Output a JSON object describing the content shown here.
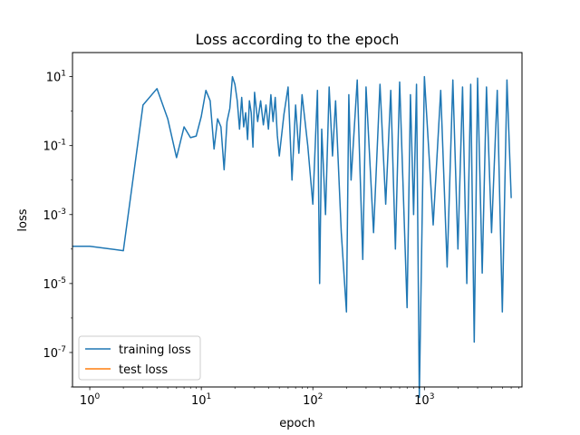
{
  "chart_data": {
    "type": "line",
    "title": "Loss according to the epoch",
    "xlabel": "epoch",
    "ylabel": "loss",
    "xscale": "log",
    "yscale": "log",
    "xlim": [
      0.7,
      7500
    ],
    "ylim": [
      1e-08,
      50
    ],
    "x_ticks": [
      {
        "base": "10",
        "exp": "0",
        "value": 1
      },
      {
        "base": "10",
        "exp": "1",
        "value": 10
      },
      {
        "base": "10",
        "exp": "2",
        "value": 100
      },
      {
        "base": "10",
        "exp": "3",
        "value": 1000
      }
    ],
    "y_ticks": [
      {
        "base": "10",
        "exp": "1",
        "value": 10
      },
      {
        "base": "10",
        "exp": "-1",
        "value": 0.1
      },
      {
        "base": "10",
        "exp": "-3",
        "value": 0.001
      },
      {
        "base": "10",
        "exp": "-5",
        "value": 1e-05
      },
      {
        "base": "10",
        "exp": "-7",
        "value": 1e-07
      }
    ],
    "grid": false,
    "legend_position": "lower-left",
    "series": [
      {
        "name": "training loss",
        "color": "#1f77b4",
        "x": [
          0,
          1,
          2,
          3,
          4,
          5,
          6,
          7,
          8,
          9,
          10,
          11,
          12,
          13,
          14,
          15,
          16,
          17,
          18,
          19,
          20,
          21,
          22,
          23,
          24,
          25,
          26,
          27,
          28,
          29,
          30,
          32,
          34,
          36,
          38,
          40,
          42,
          44,
          46,
          48,
          50,
          55,
          60,
          65,
          70,
          75,
          80,
          90,
          100,
          110,
          115,
          120,
          130,
          140,
          150,
          160,
          180,
          200,
          210,
          220,
          250,
          280,
          300,
          350,
          400,
          450,
          500,
          550,
          600,
          700,
          750,
          800,
          850,
          900,
          1000,
          1200,
          1400,
          1600,
          1800,
          2000,
          2200,
          2400,
          2600,
          2800,
          3000,
          3300,
          3600,
          4000,
          4500,
          5000,
          5500,
          6000
        ],
        "y": [
          0.00012,
          0.00012,
          9e-05,
          1.5,
          4.5,
          0.6,
          0.045,
          0.35,
          0.17,
          0.19,
          0.7,
          4.0,
          2.0,
          0.08,
          0.6,
          0.35,
          0.02,
          0.5,
          1.2,
          10.0,
          6.0,
          2.0,
          0.3,
          2.5,
          0.35,
          0.9,
          0.15,
          2.0,
          0.9,
          0.09,
          3.5,
          0.5,
          2.0,
          0.4,
          1.5,
          0.3,
          3.0,
          0.5,
          2.5,
          0.2,
          0.05,
          0.8,
          5.0,
          0.01,
          1.5,
          0.06,
          3.0,
          0.1,
          0.002,
          4.0,
          1e-05,
          0.3,
          0.001,
          5.0,
          0.05,
          2.0,
          0.0003,
          1.5e-06,
          3.0,
          0.01,
          8.0,
          5e-05,
          5.0,
          0.0003,
          6.0,
          0.002,
          4.0,
          0.0001,
          7.0,
          2e-06,
          3.0,
          0.001,
          6.0,
          5e-09,
          10.0,
          0.0005,
          4.0,
          3e-05,
          8.0,
          0.0001,
          5.0,
          1e-05,
          6.0,
          2e-07,
          9.0,
          2e-05,
          5.0,
          0.0003,
          4.0,
          1.5e-06,
          8.0,
          0.003
        ]
      },
      {
        "name": "test loss",
        "color": "#ff7f0e",
        "x": [],
        "y": []
      }
    ]
  }
}
